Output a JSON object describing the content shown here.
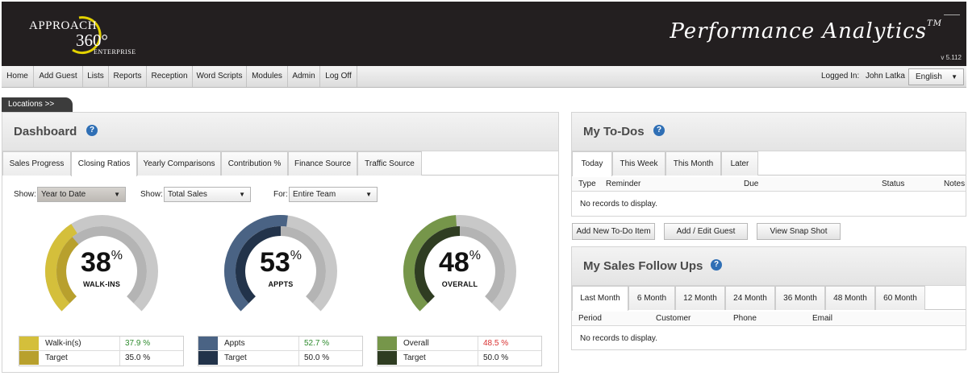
{
  "header": {
    "logo_line1": "APPROACH",
    "logo_360": "360°",
    "logo_line3": "ENTERPRISE",
    "title": "Performance Analytics",
    "trademark": "TM",
    "version": "v 5.112"
  },
  "nav": {
    "items": [
      "Home",
      "Add Guest",
      "Lists",
      "Reports",
      "Reception",
      "Word Scripts",
      "Modules",
      "Admin",
      "Log Off"
    ],
    "logged_in_label": "Logged In:",
    "user": "John Latka",
    "language": "English"
  },
  "locations": "Locations  >>",
  "dashboard": {
    "title": "Dashboard",
    "help": "?",
    "tabs": [
      "Sales Progress",
      "Closing Ratios",
      "Yearly Comparisons",
      "Contribution %",
      "Finance Source",
      "Traffic Source"
    ],
    "active_tab": "Closing Ratios",
    "filters": {
      "show1_label": "Show:",
      "show1_value": "Year to Date",
      "show2_label": "Show:",
      "show2_value": "Total Sales",
      "for_label": "For:",
      "for_value": "Entire Team"
    },
    "gauges": [
      {
        "value": "38",
        "unit": "%",
        "label": "WALK-INS",
        "actual_fraction": 0.379,
        "target_fraction": 0.35,
        "actual_color": "#d4bf3b",
        "target_color": "#b8a02d",
        "legend": [
          {
            "name": "Walk-in(s)",
            "value": "37.9 %",
            "value_color": "#2e8b2e",
            "swatch": "#d4bf3b"
          },
          {
            "name": "Target",
            "value": "35.0 %",
            "value_color": "#222222",
            "swatch": "#b8a02d"
          }
        ]
      },
      {
        "value": "53",
        "unit": "%",
        "label": "APPTS",
        "actual_fraction": 0.527,
        "target_fraction": 0.5,
        "actual_color": "#4a6384",
        "target_color": "#22334a",
        "legend": [
          {
            "name": "Appts",
            "value": "52.7 %",
            "value_color": "#2e8b2e",
            "swatch": "#4a6384"
          },
          {
            "name": "Target",
            "value": "50.0 %",
            "value_color": "#222222",
            "swatch": "#22334a"
          }
        ]
      },
      {
        "value": "48",
        "unit": "%",
        "label": "OVERALL",
        "actual_fraction": 0.485,
        "target_fraction": 0.5,
        "actual_color": "#76964a",
        "target_color": "#2f3d22",
        "legend": [
          {
            "name": "Overall",
            "value": "48.5 %",
            "value_color": "#d83030",
            "swatch": "#76964a"
          },
          {
            "name": "Target",
            "value": "50.0 %",
            "value_color": "#222222",
            "swatch": "#2f3d22"
          }
        ]
      }
    ]
  },
  "todos": {
    "title": "My To-Dos",
    "help": "?",
    "tabs": [
      "Today",
      "This Week",
      "This Month",
      "Later"
    ],
    "active_tab": "Today",
    "columns": [
      "Type",
      "Reminder",
      "Due",
      "Status",
      "Notes"
    ],
    "empty": "No records to display.",
    "buttons": [
      "Add New To-Do Item",
      "Add / Edit Guest",
      "View Snap Shot"
    ]
  },
  "followups": {
    "title": "My Sales Follow Ups",
    "help": "?",
    "tabs": [
      "Last Month",
      "6 Month",
      "12 Month",
      "24 Month",
      "36 Month",
      "48 Month",
      "60 Month"
    ],
    "active_tab": "Last Month",
    "columns": [
      "Period",
      "Customer",
      "Phone",
      "Email"
    ],
    "empty": "No records to display."
  }
}
